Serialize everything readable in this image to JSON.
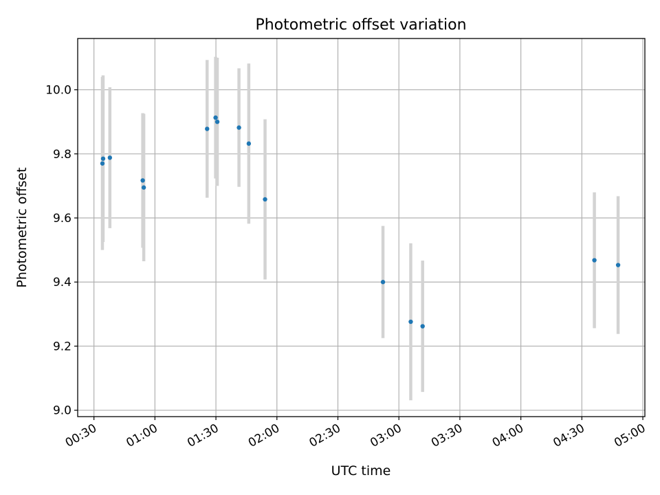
{
  "chart_data": {
    "type": "scatter",
    "title": "Photometric offset variation",
    "xlabel": "UTC time",
    "ylabel": "Photometric offset",
    "x_tick_labels": [
      "00:30",
      "01:00",
      "01:30",
      "02:00",
      "02:30",
      "03:00",
      "03:30",
      "04:00",
      "04:30",
      "05:00"
    ],
    "x_tick_minutes": [
      30,
      60,
      90,
      120,
      150,
      180,
      210,
      240,
      270,
      300
    ],
    "y_tick_labels": [
      "9.0",
      "9.2",
      "9.4",
      "9.6",
      "9.8",
      "10.0"
    ],
    "y_tick_values": [
      9.0,
      9.2,
      9.4,
      9.6,
      9.8,
      10.0
    ],
    "xlim_minutes": [
      22,
      301
    ],
    "ylim": [
      8.98,
      10.16
    ],
    "grid": true,
    "errorbar_color": "#d3d3d3",
    "marker_color": "#1f77b4",
    "series": [
      {
        "points": [
          {
            "x": "00:34:10",
            "y": 9.77,
            "yerr": 0.27
          },
          {
            "x": "00:34:30",
            "y": 9.785,
            "yerr": 0.26
          },
          {
            "x": "00:37:50",
            "y": 9.788,
            "yerr": 0.22
          },
          {
            "x": "00:54:00",
            "y": 9.717,
            "yerr": 0.21
          },
          {
            "x": "00:54:30",
            "y": 9.695,
            "yerr": 0.23
          },
          {
            "x": "01:25:40",
            "y": 9.878,
            "yerr": 0.215
          },
          {
            "x": "01:29:50",
            "y": 9.913,
            "yerr": 0.19
          },
          {
            "x": "01:30:40",
            "y": 9.9,
            "yerr": 0.2
          },
          {
            "x": "01:41:20",
            "y": 9.882,
            "yerr": 0.185
          },
          {
            "x": "01:46:10",
            "y": 9.832,
            "yerr": 0.25
          },
          {
            "x": "01:54:10",
            "y": 9.658,
            "yerr": 0.25
          },
          {
            "x": "02:52:10",
            "y": 9.4,
            "yerr": 0.175
          },
          {
            "x": "03:05:50",
            "y": 9.276,
            "yerr": 0.245
          },
          {
            "x": "03:11:40",
            "y": 9.262,
            "yerr": 0.205
          },
          {
            "x": "04:36:10",
            "y": 9.468,
            "yerr": 0.212
          },
          {
            "x": "04:47:50",
            "y": 9.453,
            "yerr": 0.215
          }
        ]
      }
    ]
  }
}
